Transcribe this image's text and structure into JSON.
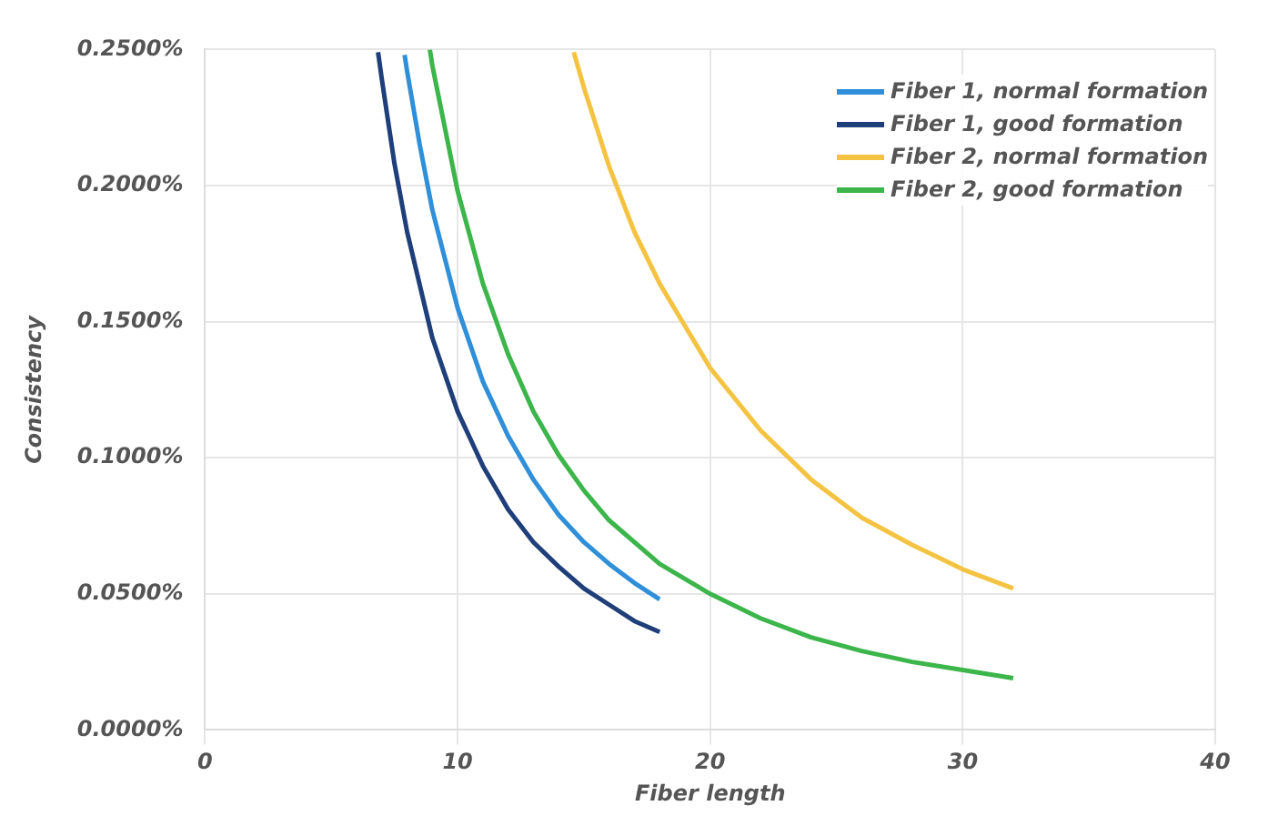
{
  "chart_data": {
    "type": "line",
    "xlabel": "Fiber length",
    "ylabel": "Consistency",
    "xlim": [
      0,
      40
    ],
    "xticks": [
      0,
      10,
      20,
      30,
      40
    ],
    "ylim": [
      0,
      0.25
    ],
    "yticks": [
      {
        "value": 0,
        "label": "0.0000%"
      },
      {
        "value": 0.05,
        "label": "0.0500%"
      },
      {
        "value": 0.1,
        "label": "0.1000%"
      },
      {
        "value": 0.15,
        "label": "0.1500%"
      },
      {
        "value": 0.2,
        "label": "0.2000%"
      },
      {
        "value": 0.25,
        "label": "0.2500%"
      }
    ],
    "grid": true,
    "legend": "top right",
    "marker": "none",
    "line_style": "solid",
    "series": [
      {
        "name": "Fiber 1, normal formation",
        "color": "#2f8fd8",
        "x": [
          7.9,
          8,
          8.5,
          9,
          10,
          11,
          12,
          13,
          14,
          15,
          16,
          17,
          18
        ],
        "values": [
          0.248,
          0.242,
          0.215,
          0.191,
          0.155,
          0.128,
          0.108,
          0.092,
          0.079,
          0.069,
          0.061,
          0.054,
          0.048
        ]
      },
      {
        "name": "Fiber 1, good formation",
        "color": "#1f3f7a",
        "x": [
          6.85,
          7,
          7.5,
          8,
          9,
          10,
          11,
          12,
          13,
          14,
          15,
          16,
          17,
          18
        ],
        "values": [
          0.249,
          0.239,
          0.208,
          0.183,
          0.144,
          0.117,
          0.097,
          0.081,
          0.069,
          0.06,
          0.052,
          0.046,
          0.04,
          0.036
        ]
      },
      {
        "name": "Fiber 2, normal formation",
        "color": "#f5c342",
        "x": [
          14.6,
          15,
          16,
          17,
          18,
          20,
          22,
          24,
          26,
          28,
          30,
          32
        ],
        "values": [
          0.249,
          0.236,
          0.207,
          0.183,
          0.164,
          0.133,
          0.11,
          0.092,
          0.078,
          0.068,
          0.059,
          0.052
        ]
      },
      {
        "name": "Fiber 2, good formation",
        "color": "#3cb54a",
        "x": [
          8.9,
          9,
          10,
          11,
          12,
          13,
          14,
          15,
          16,
          18,
          20,
          22,
          24,
          26,
          28,
          30,
          32
        ],
        "values": [
          0.25,
          0.244,
          0.198,
          0.164,
          0.138,
          0.117,
          0.101,
          0.088,
          0.077,
          0.061,
          0.05,
          0.041,
          0.034,
          0.029,
          0.025,
          0.022,
          0.019
        ]
      }
    ]
  }
}
